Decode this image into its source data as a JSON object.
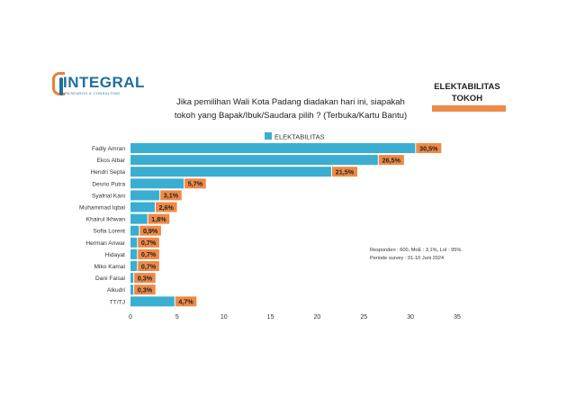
{
  "logo": {
    "name": "INTEGRAL",
    "tagline": "RESEARCH & CONSULTING"
  },
  "question": {
    "line1": "Jika pemilihan Wali Kota Padang diadakan hari ini, siapakah",
    "line2": "tokoh yang Bapak/Ibuk/Saudara pilih ? (Terbuka/Kartu Bantu)"
  },
  "badge": {
    "line1": "ELEKTABILITAS",
    "line2": "TOKOH"
  },
  "note": {
    "line1": "Responden : 600, MoE : 3,1%, LoI : 95%.",
    "line2": "Periode survey : 01-10 Juni 2024"
  },
  "colors": {
    "bar": "#3aaed0",
    "label_bg": "#ee8a47",
    "accent": "#ee8a47"
  },
  "chart_data": {
    "type": "bar",
    "orientation": "horizontal",
    "categories": [
      "Fadly Amran",
      "Ekos Albar",
      "Hendri Septa",
      "Desrio Putra",
      "Syafrial Kani",
      "Muhammad Iqbal",
      "Khairul Ikhwan",
      "Sofia Lorent",
      "Herman Anwar",
      "Hidayat",
      "Miko Kamal",
      "Dani Faisal",
      "Alkudri",
      "TT/TJ"
    ],
    "series": [
      {
        "name": "ELEKTABILITAS",
        "values": [
          30.5,
          26.5,
          21.5,
          5.7,
          3.1,
          2.6,
          1.8,
          0.9,
          0.7,
          0.7,
          0.7,
          0.3,
          0.3,
          4.7
        ],
        "labels": [
          "30,5%",
          "26,5%",
          "21,5%",
          "5,7%",
          "3,1%",
          "2,6%",
          "1,8%",
          "0,9%",
          "0,7%",
          "0,7%",
          "0,7%",
          "0,3%",
          "0,3%",
          "4,7%"
        ]
      }
    ],
    "xlim": [
      0,
      35
    ],
    "xticks": [
      "0",
      "5",
      "10",
      "15",
      "20",
      "25",
      "30",
      "35"
    ],
    "legend": "top-center",
    "grid": false
  }
}
